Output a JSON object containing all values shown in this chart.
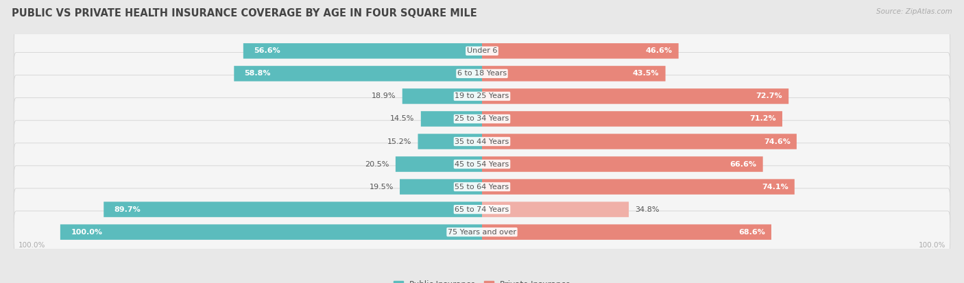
{
  "title": "PUBLIC VS PRIVATE HEALTH INSURANCE COVERAGE BY AGE IN FOUR SQUARE MILE",
  "source": "Source: ZipAtlas.com",
  "categories": [
    "Under 6",
    "6 to 18 Years",
    "19 to 25 Years",
    "25 to 34 Years",
    "35 to 44 Years",
    "45 to 54 Years",
    "55 to 64 Years",
    "65 to 74 Years",
    "75 Years and over"
  ],
  "public_values": [
    56.6,
    58.8,
    18.9,
    14.5,
    15.2,
    20.5,
    19.5,
    89.7,
    100.0
  ],
  "private_values": [
    46.6,
    43.5,
    72.7,
    71.2,
    74.6,
    66.6,
    74.1,
    34.8,
    68.6
  ],
  "public_color": "#5bbcbd",
  "private_color": "#e8867a",
  "private_color_light": "#f0b0a8",
  "public_label": "Public Insurance",
  "private_label": "Private Insurance",
  "bg_color": "#e8e8e8",
  "bar_bg_color": "#f5f5f5",
  "title_color": "#444444",
  "label_dark": "#555555",
  "label_light": "#ffffff",
  "axis_label_color": "#aaaaaa",
  "title_fontsize": 10.5,
  "bar_label_fontsize": 8.0,
  "category_fontsize": 8.0,
  "legend_fontsize": 8.5,
  "source_fontsize": 7.5,
  "axis_tick_fontsize": 7.5
}
